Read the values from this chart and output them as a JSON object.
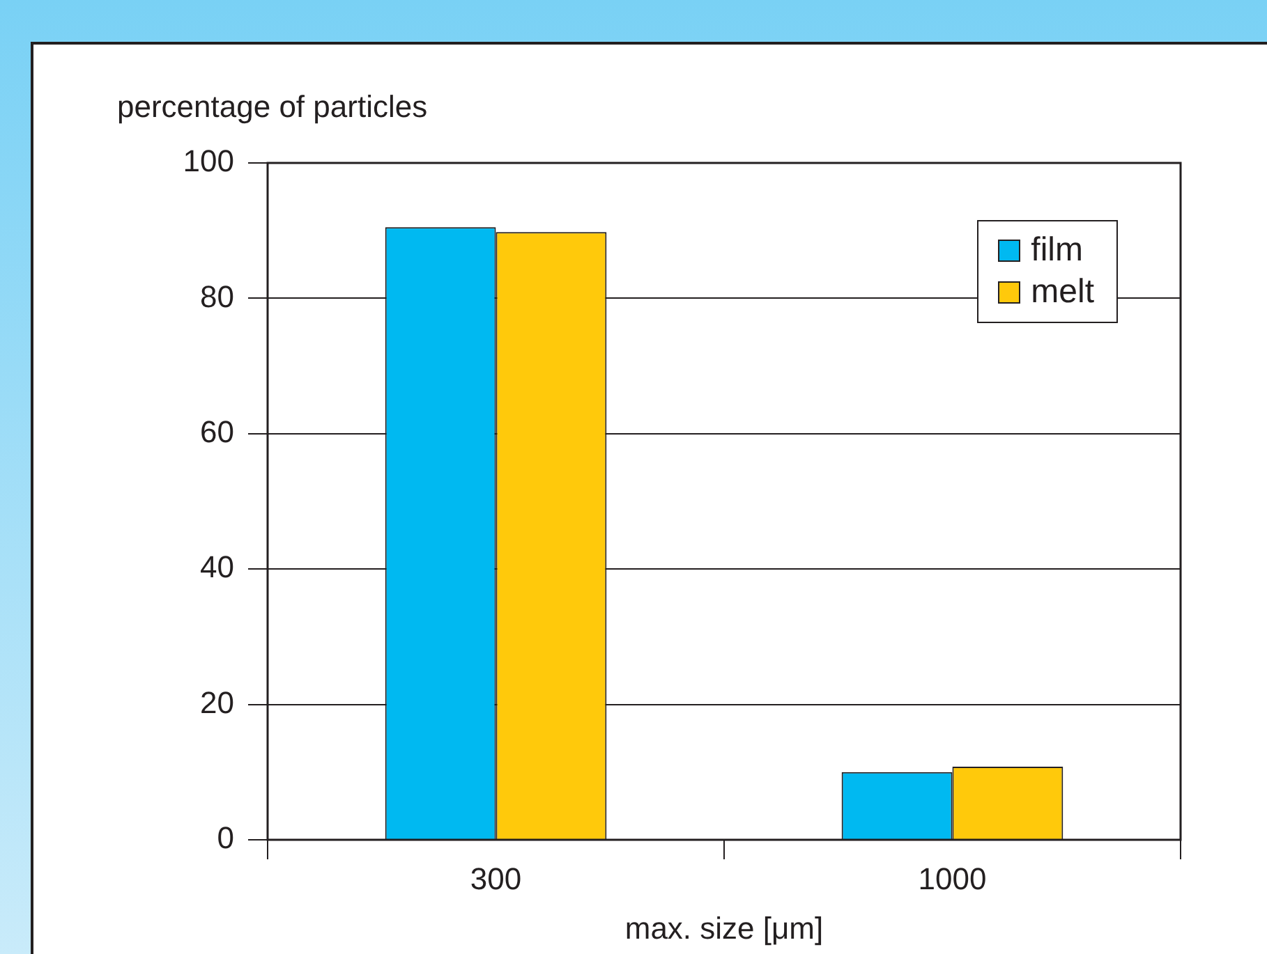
{
  "chart_data": {
    "type": "bar",
    "xlabel": "max. size [μm]",
    "ylabel": "percentage of particles",
    "categories": [
      "300",
      "1000"
    ],
    "series": [
      {
        "name": "film",
        "color": "#00b9f1",
        "values": [
          90.5,
          10.0
        ]
      },
      {
        "name": "melt",
        "color": "#ffc90b",
        "values": [
          89.8,
          10.8
        ]
      }
    ],
    "ylim": [
      0,
      100
    ],
    "yticks": [
      0,
      20,
      40,
      60,
      80,
      100
    ],
    "grid": "y",
    "legend": "top right"
  }
}
